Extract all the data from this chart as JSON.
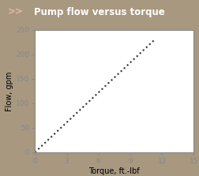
{
  "title": "Pump flow versus torque",
  "title_prefix": ">>",
  "header_bg": "#6B3020",
  "header_text_color": "#FFFFFF",
  "xlabel": "Torque, ft.-lbf",
  "ylabel": "Flow, gpm",
  "xlim": [
    0,
    15
  ],
  "ylim": [
    0,
    250
  ],
  "xticks": [
    0,
    3,
    6,
    9,
    12,
    15
  ],
  "yticks": [
    0,
    50,
    100,
    150,
    200,
    250
  ],
  "line_x": [
    0,
    11.3
  ],
  "line_y": [
    0,
    230
  ],
  "line_color": "#333333",
  "line_style": "dotted",
  "line_width": 1.5,
  "plot_bg": "#FFFFFF",
  "outer_bg": "#A89880",
  "plot_border_color": "#888888",
  "xlabel_fontsize": 7,
  "ylabel_fontsize": 7,
  "tick_fontsize": 6.5,
  "title_fontsize": 8.5,
  "prefix_fontsize": 8.5
}
